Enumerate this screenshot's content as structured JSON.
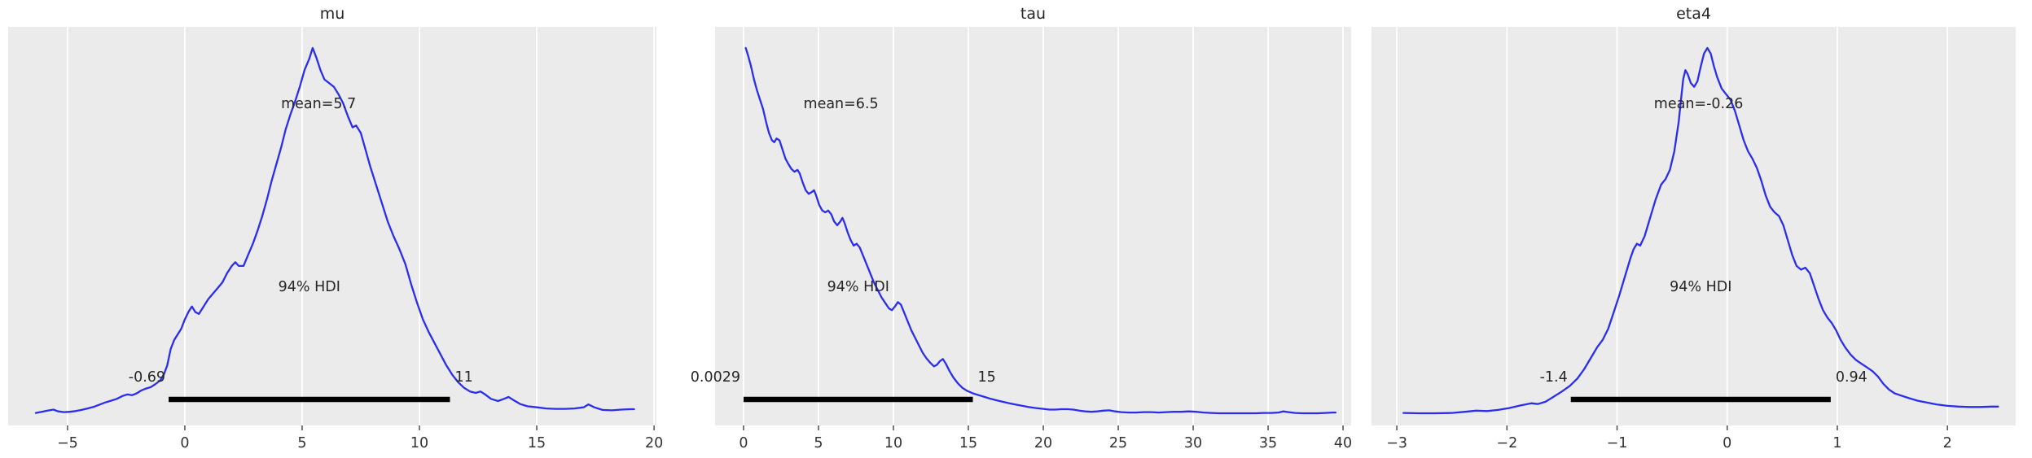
{
  "figure": {
    "background": "#ffffff"
  },
  "style": {
    "panel_bg": "#ebebeb",
    "grid_color": "#ffffff",
    "curve_color": "#2a2eec",
    "hdi_bar_color": "#000000",
    "text_color": "#262626",
    "tick_mark_color": "#555555",
    "tick_label_color": "#333333"
  },
  "chart_data": [
    {
      "type": "line",
      "title": "mu",
      "mean_label": "mean=5.7",
      "mean_value": 5.7,
      "hdi_label": "94% HDI",
      "hdi_lo": -0.69,
      "hdi_hi": 11.3,
      "hdi_lo_label": "-0.69",
      "hdi_hi_label": "11",
      "xlim": [
        -7.53,
        20.1
      ],
      "xticks": [
        -5,
        0,
        5,
        10,
        15,
        20
      ],
      "xtick_labels": [
        "−5",
        "0",
        "5",
        "10",
        "15",
        "20"
      ],
      "grid": true,
      "legend": false,
      "curve_points": [
        [
          -6.35,
          0.012
        ],
        [
          -6.1,
          0.015
        ],
        [
          -5.85,
          0.018
        ],
        [
          -5.6,
          0.021
        ],
        [
          -5.4,
          0.016
        ],
        [
          -5.15,
          0.014
        ],
        [
          -4.9,
          0.015
        ],
        [
          -4.65,
          0.017
        ],
        [
          -4.4,
          0.02
        ],
        [
          -4.15,
          0.024
        ],
        [
          -3.9,
          0.028
        ],
        [
          -3.65,
          0.034
        ],
        [
          -3.4,
          0.04
        ],
        [
          -3.15,
          0.045
        ],
        [
          -2.9,
          0.05
        ],
        [
          -2.65,
          0.058
        ],
        [
          -2.45,
          0.062
        ],
        [
          -2.25,
          0.06
        ],
        [
          -2.05,
          0.065
        ],
        [
          -1.85,
          0.073
        ],
        [
          -1.65,
          0.078
        ],
        [
          -1.45,
          0.082
        ],
        [
          -1.25,
          0.09
        ],
        [
          -1.05,
          0.1
        ],
        [
          -0.9,
          0.115
        ],
        [
          -0.75,
          0.14
        ],
        [
          -0.6,
          0.185
        ],
        [
          -0.45,
          0.21
        ],
        [
          -0.3,
          0.225
        ],
        [
          -0.15,
          0.24
        ],
        [
          0.0,
          0.265
        ],
        [
          0.15,
          0.285
        ],
        [
          0.3,
          0.3
        ],
        [
          0.45,
          0.285
        ],
        [
          0.6,
          0.28
        ],
        [
          0.8,
          0.3
        ],
        [
          1.0,
          0.32
        ],
        [
          1.2,
          0.335
        ],
        [
          1.4,
          0.35
        ],
        [
          1.6,
          0.365
        ],
        [
          1.8,
          0.39
        ],
        [
          2.0,
          0.41
        ],
        [
          2.15,
          0.42
        ],
        [
          2.3,
          0.41
        ],
        [
          2.5,
          0.41
        ],
        [
          2.7,
          0.44
        ],
        [
          2.9,
          0.47
        ],
        [
          3.1,
          0.505
        ],
        [
          3.3,
          0.545
        ],
        [
          3.5,
          0.59
        ],
        [
          3.7,
          0.64
        ],
        [
          3.9,
          0.685
        ],
        [
          4.1,
          0.73
        ],
        [
          4.3,
          0.78
        ],
        [
          4.5,
          0.82
        ],
        [
          4.7,
          0.855
        ],
        [
          4.9,
          0.895
        ],
        [
          5.1,
          0.94
        ],
        [
          5.3,
          0.97
        ],
        [
          5.45,
          1.0
        ],
        [
          5.6,
          0.975
        ],
        [
          5.78,
          0.94
        ],
        [
          5.95,
          0.915
        ],
        [
          6.15,
          0.905
        ],
        [
          6.35,
          0.895
        ],
        [
          6.55,
          0.875
        ],
        [
          6.75,
          0.85
        ],
        [
          6.95,
          0.815
        ],
        [
          7.15,
          0.785
        ],
        [
          7.3,
          0.79
        ],
        [
          7.5,
          0.77
        ],
        [
          7.7,
          0.725
        ],
        [
          7.9,
          0.68
        ],
        [
          8.15,
          0.63
        ],
        [
          8.4,
          0.58
        ],
        [
          8.65,
          0.53
        ],
        [
          8.9,
          0.49
        ],
        [
          9.15,
          0.455
        ],
        [
          9.4,
          0.415
        ],
        [
          9.65,
          0.36
        ],
        [
          9.9,
          0.31
        ],
        [
          10.15,
          0.265
        ],
        [
          10.4,
          0.23
        ],
        [
          10.65,
          0.2
        ],
        [
          10.9,
          0.17
        ],
        [
          11.15,
          0.14
        ],
        [
          11.4,
          0.115
        ],
        [
          11.65,
          0.095
        ],
        [
          11.9,
          0.08
        ],
        [
          12.15,
          0.07
        ],
        [
          12.4,
          0.066
        ],
        [
          12.6,
          0.07
        ],
        [
          12.8,
          0.062
        ],
        [
          13.05,
          0.05
        ],
        [
          13.35,
          0.044
        ],
        [
          13.6,
          0.05
        ],
        [
          13.8,
          0.055
        ],
        [
          14.0,
          0.047
        ],
        [
          14.3,
          0.036
        ],
        [
          14.6,
          0.03
        ],
        [
          15.0,
          0.027
        ],
        [
          15.4,
          0.024
        ],
        [
          15.8,
          0.023
        ],
        [
          16.2,
          0.023
        ],
        [
          16.6,
          0.024
        ],
        [
          17.0,
          0.027
        ],
        [
          17.2,
          0.035
        ],
        [
          17.45,
          0.027
        ],
        [
          17.8,
          0.02
        ],
        [
          18.2,
          0.019
        ],
        [
          18.6,
          0.021
        ],
        [
          19.0,
          0.022
        ],
        [
          19.15,
          0.022
        ]
      ]
    },
    {
      "type": "line",
      "title": "tau",
      "mean_label": "mean=6.5",
      "mean_value": 6.5,
      "hdi_label": "94% HDI",
      "hdi_lo": 0.0029,
      "hdi_hi": 15.3,
      "hdi_lo_label": "0.0029",
      "hdi_hi_label": "15",
      "xlim": [
        -1.9,
        40.54
      ],
      "xticks": [
        0,
        5,
        10,
        15,
        20,
        25,
        30,
        35,
        40
      ],
      "xtick_labels": [
        "0",
        "5",
        "10",
        "15",
        "20",
        "25",
        "30",
        "35",
        "40"
      ],
      "grid": true,
      "legend": false,
      "curve_points": [
        [
          0.15,
          1.0
        ],
        [
          0.3,
          0.98
        ],
        [
          0.5,
          0.95
        ],
        [
          0.7,
          0.915
        ],
        [
          0.9,
          0.885
        ],
        [
          1.1,
          0.86
        ],
        [
          1.3,
          0.835
        ],
        [
          1.5,
          0.8
        ],
        [
          1.7,
          0.77
        ],
        [
          1.9,
          0.75
        ],
        [
          2.05,
          0.745
        ],
        [
          2.2,
          0.755
        ],
        [
          2.4,
          0.75
        ],
        [
          2.6,
          0.725
        ],
        [
          2.8,
          0.7
        ],
        [
          3.0,
          0.685
        ],
        [
          3.2,
          0.672
        ],
        [
          3.4,
          0.665
        ],
        [
          3.6,
          0.67
        ],
        [
          3.75,
          0.66
        ],
        [
          3.95,
          0.635
        ],
        [
          4.15,
          0.615
        ],
        [
          4.35,
          0.605
        ],
        [
          4.55,
          0.61
        ],
        [
          4.7,
          0.615
        ],
        [
          4.85,
          0.6
        ],
        [
          5.05,
          0.575
        ],
        [
          5.25,
          0.56
        ],
        [
          5.45,
          0.555
        ],
        [
          5.65,
          0.56
        ],
        [
          5.85,
          0.55
        ],
        [
          6.05,
          0.53
        ],
        [
          6.25,
          0.52
        ],
        [
          6.45,
          0.53
        ],
        [
          6.6,
          0.54
        ],
        [
          6.75,
          0.525
        ],
        [
          6.95,
          0.5
        ],
        [
          7.15,
          0.48
        ],
        [
          7.35,
          0.465
        ],
        [
          7.55,
          0.47
        ],
        [
          7.75,
          0.46
        ],
        [
          7.95,
          0.44
        ],
        [
          8.2,
          0.415
        ],
        [
          8.45,
          0.39
        ],
        [
          8.7,
          0.365
        ],
        [
          8.95,
          0.345
        ],
        [
          9.2,
          0.325
        ],
        [
          9.45,
          0.31
        ],
        [
          9.7,
          0.295
        ],
        [
          9.9,
          0.29
        ],
        [
          10.1,
          0.3
        ],
        [
          10.3,
          0.312
        ],
        [
          10.5,
          0.305
        ],
        [
          10.7,
          0.285
        ],
        [
          10.95,
          0.26
        ],
        [
          11.2,
          0.235
        ],
        [
          11.45,
          0.215
        ],
        [
          11.7,
          0.195
        ],
        [
          11.95,
          0.175
        ],
        [
          12.2,
          0.16
        ],
        [
          12.45,
          0.148
        ],
        [
          12.7,
          0.138
        ],
        [
          12.9,
          0.142
        ],
        [
          13.1,
          0.152
        ],
        [
          13.3,
          0.158
        ],
        [
          13.5,
          0.145
        ],
        [
          13.75,
          0.125
        ],
        [
          14.0,
          0.108
        ],
        [
          14.3,
          0.092
        ],
        [
          14.6,
          0.08
        ],
        [
          14.9,
          0.072
        ],
        [
          15.3,
          0.065
        ],
        [
          15.7,
          0.06
        ],
        [
          16.1,
          0.055
        ],
        [
          16.5,
          0.05
        ],
        [
          17.0,
          0.045
        ],
        [
          17.5,
          0.04
        ],
        [
          18.0,
          0.036
        ],
        [
          18.5,
          0.032
        ],
        [
          19.0,
          0.028
        ],
        [
          19.5,
          0.025
        ],
        [
          20.0,
          0.023
        ],
        [
          20.4,
          0.021
        ],
        [
          20.8,
          0.021
        ],
        [
          21.2,
          0.022
        ],
        [
          21.6,
          0.022
        ],
        [
          22.0,
          0.021
        ],
        [
          22.4,
          0.018
        ],
        [
          22.8,
          0.016
        ],
        [
          23.2,
          0.015
        ],
        [
          23.6,
          0.016
        ],
        [
          24.0,
          0.018
        ],
        [
          24.4,
          0.019
        ],
        [
          24.8,
          0.016
        ],
        [
          25.2,
          0.014
        ],
        [
          25.7,
          0.013
        ],
        [
          26.2,
          0.013
        ],
        [
          26.7,
          0.014
        ],
        [
          27.2,
          0.014
        ],
        [
          27.7,
          0.013
        ],
        [
          28.2,
          0.014
        ],
        [
          28.7,
          0.015
        ],
        [
          29.2,
          0.015
        ],
        [
          29.7,
          0.016
        ],
        [
          30.2,
          0.015
        ],
        [
          30.7,
          0.013
        ],
        [
          31.2,
          0.012
        ],
        [
          31.7,
          0.011
        ],
        [
          32.2,
          0.011
        ],
        [
          32.7,
          0.011
        ],
        [
          33.2,
          0.011
        ],
        [
          33.7,
          0.011
        ],
        [
          34.2,
          0.011
        ],
        [
          34.7,
          0.012
        ],
        [
          35.2,
          0.012
        ],
        [
          35.7,
          0.013
        ],
        [
          36.0,
          0.016
        ],
        [
          36.35,
          0.014
        ],
        [
          36.8,
          0.012
        ],
        [
          37.3,
          0.011
        ],
        [
          37.8,
          0.011
        ],
        [
          38.3,
          0.011
        ],
        [
          38.8,
          0.012
        ],
        [
          39.3,
          0.013
        ],
        [
          39.5,
          0.013
        ]
      ]
    },
    {
      "type": "line",
      "title": "eta4",
      "mean_label": "mean=-0.26",
      "mean_value": -0.26,
      "hdi_label": "94% HDI",
      "hdi_lo": -1.42,
      "hdi_hi": 0.94,
      "hdi_lo_label": "-1.4",
      "hdi_hi_label": "0.94",
      "xlim": [
        -3.23,
        2.62
      ],
      "xticks": [
        -3,
        -2,
        -1,
        0,
        1,
        2
      ],
      "xtick_labels": [
        "−3",
        "−2",
        "−1",
        "0",
        "1",
        "2"
      ],
      "grid": true,
      "legend": false,
      "curve_points": [
        [
          -2.94,
          0.012
        ],
        [
          -2.8,
          0.011
        ],
        [
          -2.65,
          0.011
        ],
        [
          -2.5,
          0.012
        ],
        [
          -2.38,
          0.015
        ],
        [
          -2.28,
          0.018
        ],
        [
          -2.18,
          0.017
        ],
        [
          -2.08,
          0.02
        ],
        [
          -1.98,
          0.025
        ],
        [
          -1.88,
          0.032
        ],
        [
          -1.78,
          0.038
        ],
        [
          -1.72,
          0.036
        ],
        [
          -1.65,
          0.042
        ],
        [
          -1.58,
          0.055
        ],
        [
          -1.5,
          0.07
        ],
        [
          -1.43,
          0.085
        ],
        [
          -1.36,
          0.105
        ],
        [
          -1.3,
          0.13
        ],
        [
          -1.24,
          0.16
        ],
        [
          -1.18,
          0.19
        ],
        [
          -1.13,
          0.21
        ],
        [
          -1.08,
          0.24
        ],
        [
          -1.03,
          0.285
        ],
        [
          -0.98,
          0.33
        ],
        [
          -0.93,
          0.38
        ],
        [
          -0.88,
          0.43
        ],
        [
          -0.85,
          0.455
        ],
        [
          -0.82,
          0.47
        ],
        [
          -0.79,
          0.465
        ],
        [
          -0.75,
          0.49
        ],
        [
          -0.7,
          0.54
        ],
        [
          -0.65,
          0.59
        ],
        [
          -0.6,
          0.63
        ],
        [
          -0.56,
          0.645
        ],
        [
          -0.52,
          0.67
        ],
        [
          -0.48,
          0.72
        ],
        [
          -0.44,
          0.8
        ],
        [
          -0.42,
          0.86
        ],
        [
          -0.4,
          0.915
        ],
        [
          -0.38,
          0.94
        ],
        [
          -0.36,
          0.93
        ],
        [
          -0.33,
          0.905
        ],
        [
          -0.3,
          0.895
        ],
        [
          -0.27,
          0.91
        ],
        [
          -0.24,
          0.95
        ],
        [
          -0.21,
          0.985
        ],
        [
          -0.18,
          1.0
        ],
        [
          -0.15,
          0.985
        ],
        [
          -0.12,
          0.95
        ],
        [
          -0.09,
          0.92
        ],
        [
          -0.05,
          0.89
        ],
        [
          -0.01,
          0.875
        ],
        [
          0.03,
          0.86
        ],
        [
          0.07,
          0.83
        ],
        [
          0.11,
          0.79
        ],
        [
          0.15,
          0.75
        ],
        [
          0.19,
          0.72
        ],
        [
          0.23,
          0.7
        ],
        [
          0.27,
          0.675
        ],
        [
          0.31,
          0.64
        ],
        [
          0.35,
          0.6
        ],
        [
          0.39,
          0.57
        ],
        [
          0.43,
          0.555
        ],
        [
          0.47,
          0.545
        ],
        [
          0.51,
          0.52
        ],
        [
          0.55,
          0.48
        ],
        [
          0.59,
          0.44
        ],
        [
          0.63,
          0.41
        ],
        [
          0.67,
          0.4
        ],
        [
          0.71,
          0.405
        ],
        [
          0.75,
          0.39
        ],
        [
          0.79,
          0.355
        ],
        [
          0.83,
          0.32
        ],
        [
          0.87,
          0.29
        ],
        [
          0.91,
          0.27
        ],
        [
          0.95,
          0.255
        ],
        [
          0.99,
          0.235
        ],
        [
          1.03,
          0.21
        ],
        [
          1.07,
          0.19
        ],
        [
          1.12,
          0.17
        ],
        [
          1.17,
          0.155
        ],
        [
          1.22,
          0.145
        ],
        [
          1.27,
          0.135
        ],
        [
          1.32,
          0.125
        ],
        [
          1.37,
          0.11
        ],
        [
          1.42,
          0.09
        ],
        [
          1.47,
          0.075
        ],
        [
          1.52,
          0.065
        ],
        [
          1.57,
          0.06
        ],
        [
          1.65,
          0.052
        ],
        [
          1.73,
          0.045
        ],
        [
          1.81,
          0.04
        ],
        [
          1.9,
          0.035
        ],
        [
          2.0,
          0.031
        ],
        [
          2.1,
          0.029
        ],
        [
          2.2,
          0.028
        ],
        [
          2.3,
          0.028
        ],
        [
          2.4,
          0.029
        ],
        [
          2.46,
          0.029
        ]
      ]
    }
  ]
}
